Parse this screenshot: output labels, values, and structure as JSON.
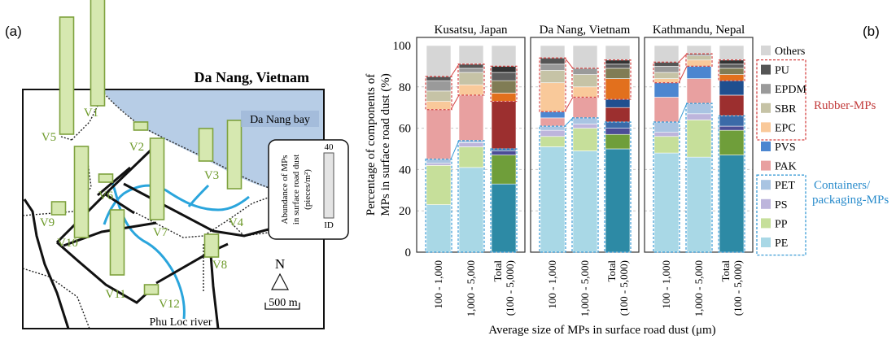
{
  "panel_labels": {
    "a": "(a)",
    "b": "(b)"
  },
  "map": {
    "title": "Da Nang, Vietnam",
    "bay_label": "Da Nang bay",
    "river_label": "Phu Loc river",
    "north_label": "N",
    "scale_label": "500 m",
    "legend": {
      "title_line1": "Abundance of MPs",
      "title_line2": "in surface road dust",
      "title_line3": "(pieces/m²)",
      "max_label": "40",
      "min_label": "ID"
    },
    "stations": [
      {
        "name": "V1",
        "abundance": 35
      },
      {
        "name": "V2",
        "abundance": 2
      },
      {
        "name": "V3",
        "abundance": 10
      },
      {
        "name": "V4",
        "abundance": 21
      },
      {
        "name": "V5",
        "abundance": 36
      },
      {
        "name": "V6",
        "abundance": 2
      },
      {
        "name": "V7",
        "abundance": 25
      },
      {
        "name": "V8",
        "abundance": 7
      },
      {
        "name": "V9",
        "abundance": 4
      },
      {
        "name": "V10",
        "abundance": 28
      },
      {
        "name": "V11",
        "abundance": 20
      },
      {
        "name": "V12",
        "abundance": 3
      }
    ]
  },
  "chart_data": {
    "type": "bar",
    "stacked": true,
    "ylabel_line1": "Percentage of components of",
    "ylabel_line2": "MPs in surface road dust (%)",
    "xlabel": "Average size of MPs in surface road dust (μm)",
    "ylim": [
      0,
      100
    ],
    "yticks": [
      0,
      20,
      40,
      60,
      80,
      100
    ],
    "grid": true,
    "legend_position": "right",
    "group_labels": {
      "rubber": "Rubber-MPs",
      "containers_line1": "Containers/",
      "containers_line2": "packaging-MPs"
    },
    "categories": [
      "100 - 1,000",
      "1,000 - 5,000",
      "Total\n(100 - 5,000)"
    ],
    "category_labels": {
      "small": "100 - 1,000",
      "large": "1,000 - 5,000",
      "total_line1": "Total",
      "total_line2": "(100 - 5,000)"
    },
    "components": [
      "PE",
      "PP",
      "PS",
      "PET",
      "PAK",
      "PVS",
      "EPC",
      "SBR",
      "EPDM",
      "PU",
      "Others"
    ],
    "colors": {
      "PE": {
        "light": "#a9d8e6",
        "dark": "#2d8aa5"
      },
      "PP": {
        "light": "#c6df9a",
        "dark": "#6f9e3a"
      },
      "PS": {
        "light": "#bdb5dc",
        "dark": "#4c4d96"
      },
      "PET": {
        "light": "#a9c4e2",
        "dark": "#3b6aa8"
      },
      "PAK": {
        "light": "#e8a0a0",
        "dark": "#9c2f2f"
      },
      "PVS": {
        "light": "#4c86d0",
        "dark": "#1f4f8f"
      },
      "EPC": {
        "light": "#f9c99a",
        "dark": "#e2701d"
      },
      "SBR": {
        "light": "#c6c3a6",
        "dark": "#807c55"
      },
      "EPDM": {
        "light": "#9a9a9a",
        "dark": "#5e5e5e"
      },
      "PU": {
        "light": "#555555",
        "dark": "#333333"
      },
      "Others": {
        "light": "#d6d6d6",
        "dark": "#d6d6d6"
      }
    },
    "panels": [
      {
        "title": "Kusatsu, Japan",
        "bars": [
          {
            "PE": 23,
            "PP": 19,
            "PS": 1,
            "PET": 2,
            "PAK": 24,
            "PVS": 0,
            "EPC": 4,
            "SBR": 5,
            "EPDM": 5,
            "PU": 2,
            "Others": 15
          },
          {
            "PE": 41,
            "PP": 10,
            "PS": 2,
            "PET": 1,
            "PAK": 22,
            "PVS": 0,
            "EPC": 5,
            "SBR": 6,
            "EPDM": 2,
            "PU": 2,
            "Others": 9
          },
          {
            "PE": 33,
            "PP": 14,
            "PS": 2,
            "PET": 1,
            "PAK": 23,
            "PVS": 0,
            "EPC": 4,
            "SBR": 6,
            "EPDM": 4,
            "PU": 3,
            "Others": 10
          }
        ]
      },
      {
        "title": "Da Nang, Vietnam",
        "bars": [
          {
            "PE": 51,
            "PP": 5,
            "PS": 3,
            "PET": 2,
            "PAK": 4,
            "PVS": 3,
            "EPC": 14,
            "SBR": 6,
            "EPDM": 3,
            "PU": 3,
            "Others": 6
          },
          {
            "PE": 49,
            "PP": 11,
            "PS": 2,
            "PET": 3,
            "PAK": 10,
            "PVS": 0,
            "EPC": 5,
            "SBR": 6,
            "EPDM": 3,
            "PU": 0,
            "Others": 11
          },
          {
            "PE": 50,
            "PP": 7,
            "PS": 3,
            "PET": 3,
            "PAK": 7,
            "PVS": 4,
            "EPC": 10,
            "SBR": 5,
            "EPDM": 2,
            "PU": 2,
            "Others": 7
          }
        ]
      },
      {
        "title": "Kathmandu, Nepal",
        "bars": [
          {
            "PE": 48,
            "PP": 8,
            "PS": 2,
            "PET": 5,
            "PAK": 12,
            "PVS": 7,
            "EPC": 2,
            "SBR": 3,
            "EPDM": 3,
            "PU": 2,
            "Others": 8
          },
          {
            "PE": 46,
            "PP": 18,
            "PS": 3,
            "PET": 5,
            "PAK": 12,
            "PVS": 6,
            "EPC": 3,
            "SBR": 2,
            "EPDM": 1,
            "PU": 0,
            "Others": 4
          },
          {
            "PE": 47,
            "PP": 12,
            "PS": 2,
            "PET": 5,
            "PAK": 10,
            "PVS": 7,
            "EPC": 3,
            "SBR": 3,
            "EPDM": 2,
            "PU": 2,
            "Others": 7
          }
        ]
      }
    ]
  }
}
